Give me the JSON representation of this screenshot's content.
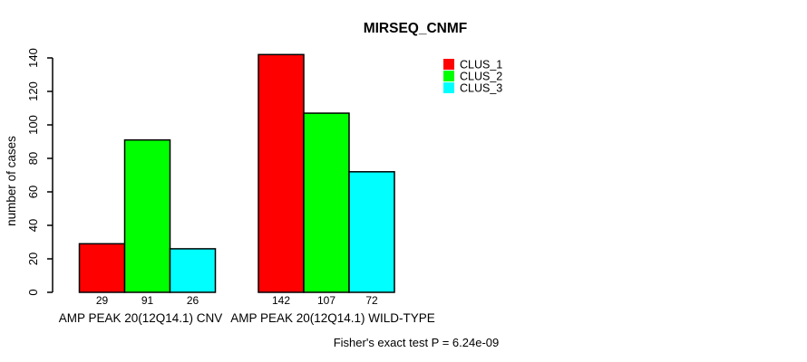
{
  "chart_data": {
    "type": "bar",
    "title": "MIRSEQ_CNMF",
    "ylabel": "number of cases",
    "xlabel": "",
    "ylim": [
      0,
      140
    ],
    "yticks": [
      0,
      20,
      40,
      60,
      80,
      100,
      120,
      140
    ],
    "grid": false,
    "legend_position": "top-right",
    "background": "#FFFFFF",
    "bar_border_color": "#000000",
    "categories": [
      "AMP PEAK 20(12Q14.1) CNV",
      "AMP PEAK 20(12Q14.1) WILD-TYPE"
    ],
    "series": [
      {
        "name": "CLUS_1",
        "color": "#FF0000",
        "values": [
          29,
          142
        ]
      },
      {
        "name": "CLUS_2",
        "color": "#00FF00",
        "values": [
          91,
          107
        ]
      },
      {
        "name": "CLUS_3",
        "color": "#00FFFF",
        "values": [
          26,
          72
        ]
      }
    ],
    "bar_value_labels": [
      [
        "29",
        "91",
        "26"
      ],
      [
        "142",
        "107",
        "72"
      ]
    ],
    "annotation": "Fisher's exact test P = 6.24e-09"
  }
}
